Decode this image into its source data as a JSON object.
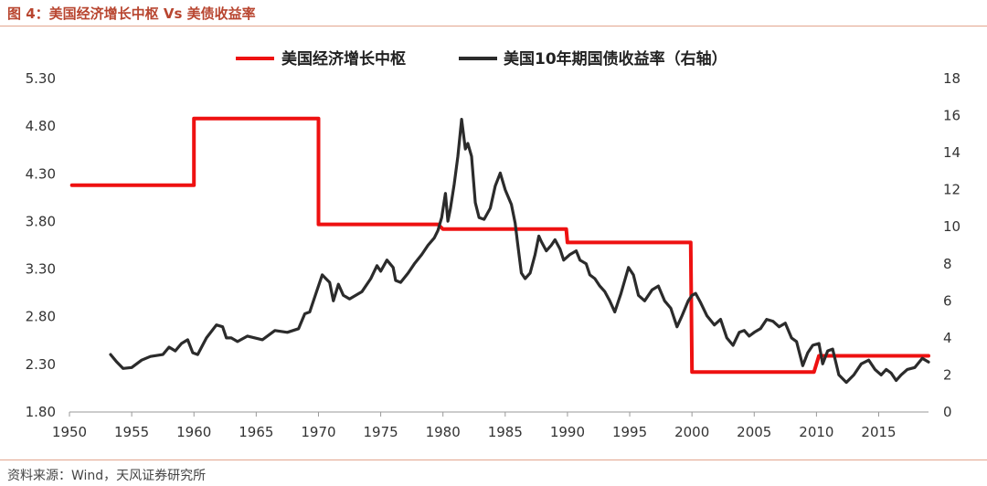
{
  "header": {
    "figure_title": "图 4：美国经济增长中枢 Vs 美债收益率"
  },
  "footer": {
    "source": "资料来源：Wind，天风证券研究所"
  },
  "colors": {
    "growth_line": "#ee1111",
    "yield_line": "#2b2b2b",
    "axis": "#999999",
    "accent_title": "#b8452f"
  },
  "chart_data": {
    "type": "line",
    "legend_position": "top-center",
    "grid": false,
    "x_ticks": [
      "1950",
      "1955",
      "1960",
      "1965",
      "1970",
      "1975",
      "1980",
      "1985",
      "1990",
      "1995",
      "2000",
      "2005",
      "2010",
      "2015"
    ],
    "xlim": [
      1950,
      2019
    ],
    "y_left_ticks": [
      "5.30",
      "4.80",
      "4.30",
      "3.80",
      "3.30",
      "2.80",
      "2.30",
      "1.80"
    ],
    "ylim_left": [
      1.8,
      5.3
    ],
    "y_right_ticks": [
      "18",
      "16",
      "14",
      "12",
      "10",
      "8",
      "6",
      "4",
      "2",
      "0"
    ],
    "ylim_right": [
      0,
      18
    ],
    "series": [
      {
        "name": "美国经济增长中枢",
        "axis": "left",
        "color": "#ee1111",
        "points": [
          [
            1950.2,
            4.18
          ],
          [
            1960,
            4.18
          ],
          [
            1960,
            4.88
          ],
          [
            1970,
            4.88
          ],
          [
            1970,
            3.77
          ],
          [
            1979.6,
            3.77
          ],
          [
            1980,
            3.72
          ],
          [
            1989.9,
            3.72
          ],
          [
            1990,
            3.58
          ],
          [
            1999.9,
            3.58
          ],
          [
            2000,
            2.22
          ],
          [
            2009.8,
            2.22
          ],
          [
            2010.2,
            2.39
          ],
          [
            2019,
            2.39
          ]
        ]
      },
      {
        "name": "美国10年期国债收益率（右轴）",
        "axis": "right",
        "color": "#2b2b2b",
        "points": [
          [
            1953.3,
            3.1
          ],
          [
            1953.8,
            2.7
          ],
          [
            1954.3,
            2.35
          ],
          [
            1955,
            2.4
          ],
          [
            1955.8,
            2.8
          ],
          [
            1956.5,
            3.0
          ],
          [
            1957.5,
            3.1
          ],
          [
            1958,
            3.5
          ],
          [
            1958.5,
            3.3
          ],
          [
            1959,
            3.7
          ],
          [
            1959.5,
            3.9
          ],
          [
            1959.9,
            3.2
          ],
          [
            1960.3,
            3.1
          ],
          [
            1961,
            4.0
          ],
          [
            1961.8,
            4.7
          ],
          [
            1962.3,
            4.6
          ],
          [
            1962.6,
            4.0
          ],
          [
            1963,
            4.0
          ],
          [
            1963.5,
            3.8
          ],
          [
            1964.3,
            4.1
          ],
          [
            1965.5,
            3.9
          ],
          [
            1966.5,
            4.4
          ],
          [
            1967.5,
            4.3
          ],
          [
            1968.4,
            4.5
          ],
          [
            1968.9,
            5.3
          ],
          [
            1969.3,
            5.4
          ],
          [
            1969.8,
            6.4
          ],
          [
            1970.3,
            7.4
          ],
          [
            1970.6,
            7.2
          ],
          [
            1970.9,
            7.0
          ],
          [
            1971.2,
            6.0
          ],
          [
            1971.6,
            6.9
          ],
          [
            1972,
            6.3
          ],
          [
            1972.5,
            6.1
          ],
          [
            1973.5,
            6.5
          ],
          [
            1974.2,
            7.2
          ],
          [
            1974.7,
            7.9
          ],
          [
            1975,
            7.6
          ],
          [
            1975.5,
            8.2
          ],
          [
            1976,
            7.8
          ],
          [
            1976.2,
            7.1
          ],
          [
            1976.6,
            7.0
          ],
          [
            1977.2,
            7.5
          ],
          [
            1977.7,
            8.0
          ],
          [
            1978.3,
            8.5
          ],
          [
            1978.8,
            9.0
          ],
          [
            1979.3,
            9.4
          ],
          [
            1979.6,
            9.8
          ],
          [
            1979.9,
            10.5
          ],
          [
            1980.2,
            11.8
          ],
          [
            1980.4,
            10.3
          ],
          [
            1980.6,
            11.0
          ],
          [
            1980.9,
            12.3
          ],
          [
            1981.2,
            13.8
          ],
          [
            1981.5,
            15.8
          ],
          [
            1981.8,
            14.2
          ],
          [
            1982,
            14.5
          ],
          [
            1982.3,
            13.8
          ],
          [
            1982.6,
            11.3
          ],
          [
            1982.9,
            10.5
          ],
          [
            1983.3,
            10.4
          ],
          [
            1983.8,
            11.0
          ],
          [
            1984.2,
            12.2
          ],
          [
            1984.6,
            12.9
          ],
          [
            1985,
            12.0
          ],
          [
            1985.5,
            11.2
          ],
          [
            1985.8,
            10.2
          ],
          [
            1986,
            9.1
          ],
          [
            1986.3,
            7.5
          ],
          [
            1986.6,
            7.2
          ],
          [
            1987,
            7.5
          ],
          [
            1987.4,
            8.5
          ],
          [
            1987.7,
            9.5
          ],
          [
            1987.9,
            9.2
          ],
          [
            1988.3,
            8.7
          ],
          [
            1988.7,
            9.0
          ],
          [
            1989,
            9.3
          ],
          [
            1989.4,
            8.8
          ],
          [
            1989.7,
            8.2
          ],
          [
            1990.2,
            8.5
          ],
          [
            1990.7,
            8.7
          ],
          [
            1991,
            8.2
          ],
          [
            1991.5,
            8.0
          ],
          [
            1991.8,
            7.4
          ],
          [
            1992.2,
            7.2
          ],
          [
            1992.6,
            6.8
          ],
          [
            1993,
            6.5
          ],
          [
            1993.4,
            6.0
          ],
          [
            1993.8,
            5.4
          ],
          [
            1994.3,
            6.4
          ],
          [
            1994.9,
            7.8
          ],
          [
            1995.3,
            7.4
          ],
          [
            1995.7,
            6.3
          ],
          [
            1996.2,
            6.0
          ],
          [
            1996.8,
            6.6
          ],
          [
            1997.3,
            6.8
          ],
          [
            1997.8,
            6.0
          ],
          [
            1998.3,
            5.6
          ],
          [
            1998.8,
            4.6
          ],
          [
            1999.2,
            5.2
          ],
          [
            1999.7,
            6.0
          ],
          [
            2000,
            6.3
          ],
          [
            2000.3,
            6.4
          ],
          [
            2000.7,
            5.9
          ],
          [
            2001.2,
            5.2
          ],
          [
            2001.8,
            4.7
          ],
          [
            2002.3,
            5.0
          ],
          [
            2002.8,
            4.0
          ],
          [
            2003.3,
            3.6
          ],
          [
            2003.8,
            4.3
          ],
          [
            2004.2,
            4.4
          ],
          [
            2004.6,
            4.1
          ],
          [
            2005,
            4.3
          ],
          [
            2005.5,
            4.5
          ],
          [
            2006,
            5.0
          ],
          [
            2006.5,
            4.9
          ],
          [
            2007,
            4.6
          ],
          [
            2007.5,
            4.8
          ],
          [
            2008,
            4.0
          ],
          [
            2008.4,
            3.8
          ],
          [
            2008.9,
            2.5
          ],
          [
            2009.3,
            3.2
          ],
          [
            2009.7,
            3.6
          ],
          [
            2010.2,
            3.7
          ],
          [
            2010.5,
            2.6
          ],
          [
            2010.9,
            3.3
          ],
          [
            2011.3,
            3.4
          ],
          [
            2011.8,
            2.0
          ],
          [
            2012.4,
            1.6
          ],
          [
            2013,
            2.0
          ],
          [
            2013.6,
            2.6
          ],
          [
            2014.2,
            2.8
          ],
          [
            2014.7,
            2.3
          ],
          [
            2015.2,
            2.0
          ],
          [
            2015.6,
            2.3
          ],
          [
            2016,
            2.1
          ],
          [
            2016.4,
            1.7
          ],
          [
            2016.8,
            2.0
          ],
          [
            2017.3,
            2.3
          ],
          [
            2017.9,
            2.4
          ],
          [
            2018.5,
            2.9
          ],
          [
            2019,
            2.7
          ]
        ]
      }
    ]
  }
}
